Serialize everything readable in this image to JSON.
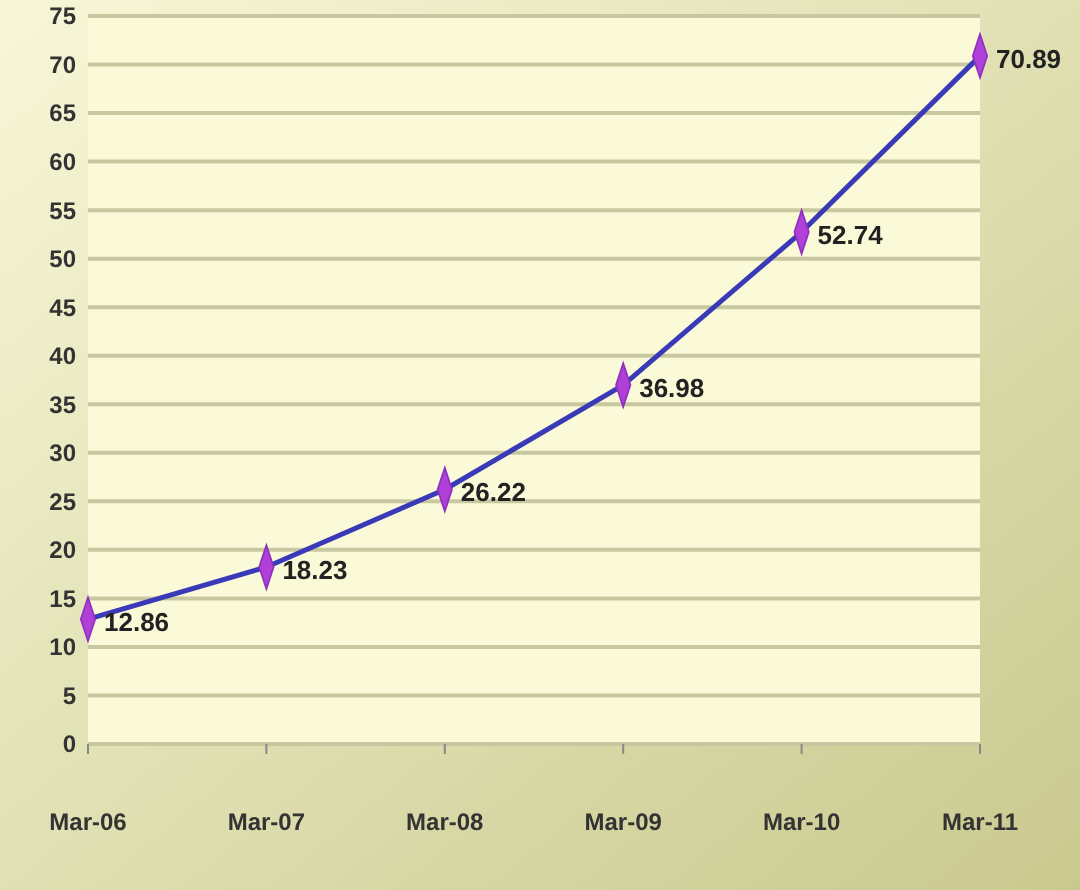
{
  "chart_data": {
    "type": "line",
    "categories": [
      "Mar-06",
      "Mar-07",
      "Mar-08",
      "Mar-09",
      "Mar-10",
      "Mar-11"
    ],
    "series": [
      {
        "color": "#3a3ab8",
        "values": [
          12.86,
          18.23,
          26.22,
          36.98,
          52.74,
          70.89
        ]
      }
    ],
    "ylim": [
      0,
      75
    ],
    "yticks": [
      0,
      5,
      10,
      15,
      20,
      25,
      30,
      35,
      40,
      45,
      50,
      55,
      60,
      65,
      70,
      75
    ],
    "grid": "y",
    "marker": "diamond",
    "data_labels": true
  }
}
